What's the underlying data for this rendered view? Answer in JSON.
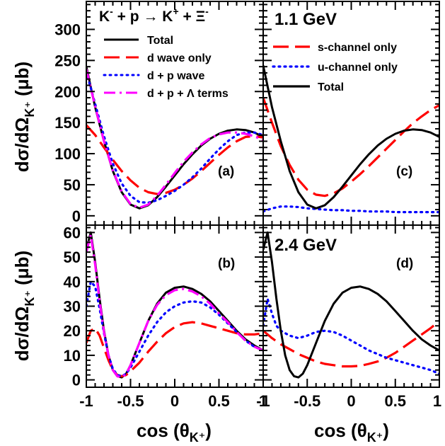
{
  "chart_data": [
    {
      "id": "a",
      "type": "line",
      "panel_label": "(a)",
      "title": "K⁻ + p → K⁺ + Ξ⁻",
      "ylabel": "dσ/dΩ_K⁺ (μb)",
      "xlim": [
        -1,
        1
      ],
      "ylim": [
        -15,
        345
      ],
      "yticks": [
        0,
        50,
        100,
        150,
        200,
        250,
        300
      ],
      "legend": "top-left",
      "series": [
        {
          "name": "Total",
          "color": "#000000",
          "dash": "solid",
          "x": [
            -1,
            -0.9,
            -0.8,
            -0.7,
            -0.6,
            -0.5,
            -0.4,
            -0.3,
            -0.2,
            -0.1,
            0,
            0.1,
            0.2,
            0.3,
            0.4,
            0.5,
            0.6,
            0.7,
            0.8,
            0.9,
            1.0
          ],
          "y": [
            240,
            175,
            120,
            72,
            38,
            18,
            12,
            17,
            30,
            47,
            65,
            83,
            99,
            113,
            124,
            132,
            137,
            139,
            138,
            134,
            127
          ]
        },
        {
          "name": "d wave only",
          "color": "#ff0000",
          "dash": "long",
          "x": [
            -1,
            -0.9,
            -0.8,
            -0.7,
            -0.6,
            -0.5,
            -0.4,
            -0.3,
            -0.2,
            -0.1,
            0,
            0.1,
            0.2,
            0.3,
            0.4,
            0.5,
            0.6,
            0.7,
            0.8,
            0.9,
            1.0
          ],
          "y": [
            146,
            130,
            110,
            90,
            72,
            57,
            45,
            38,
            35,
            37,
            42,
            50,
            60,
            72,
            85,
            98,
            110,
            120,
            127,
            128,
            126
          ]
        },
        {
          "name": "d + p wave",
          "color": "#0000ff",
          "dash": "dot",
          "x": [
            -1,
            -0.9,
            -0.8,
            -0.7,
            -0.6,
            -0.5,
            -0.4,
            -0.3,
            -0.2,
            -0.1,
            0,
            0.1,
            0.2,
            0.3,
            0.4,
            0.5,
            0.6,
            0.7,
            0.8,
            0.9,
            1.0
          ],
          "y": [
            232,
            180,
            128,
            84,
            52,
            32,
            22,
            21,
            25,
            32,
            40,
            50,
            62,
            76,
            92,
            107,
            120,
            130,
            134,
            134,
            130
          ]
        },
        {
          "name": "d + p + Λ terms",
          "color": "#ff00ff",
          "dash": "dashdot",
          "x": [
            -1,
            -0.9,
            -0.8,
            -0.7,
            -0.6,
            -0.5,
            -0.4,
            -0.3,
            -0.2,
            -0.1,
            0,
            0.1,
            0.2,
            0.3,
            0.4,
            0.5,
            0.6,
            0.7,
            0.8,
            0.9,
            1.0
          ],
          "y": [
            236,
            176,
            120,
            73,
            39,
            19,
            13,
            18,
            32,
            50,
            69,
            87,
            102,
            115,
            125,
            131,
            134,
            134,
            132,
            128,
            122
          ]
        }
      ]
    },
    {
      "id": "c",
      "type": "line",
      "panel_label": "(c)",
      "title": "1.1 GeV",
      "xlim": [
        -1,
        1
      ],
      "ylim": [
        -15,
        345
      ],
      "legend": "top-right",
      "series": [
        {
          "name": "s-channel only",
          "color": "#ff0000",
          "dash": "long",
          "x": [
            -1,
            -0.9,
            -0.8,
            -0.7,
            -0.6,
            -0.5,
            -0.4,
            -0.3,
            -0.2,
            -0.1,
            0,
            0.1,
            0.2,
            0.3,
            0.4,
            0.5,
            0.6,
            0.7,
            0.8,
            0.9,
            1.0
          ],
          "y": [
            190,
            150,
            112,
            82,
            58,
            42,
            34,
            32,
            36,
            44,
            55,
            67,
            80,
            94,
            108,
            122,
            136,
            149,
            160,
            170,
            178
          ]
        },
        {
          "name": "u-channel only",
          "color": "#0000ff",
          "dash": "dot",
          "x": [
            -1,
            -0.9,
            -0.8,
            -0.7,
            -0.6,
            -0.5,
            -0.4,
            -0.3,
            -0.2,
            -0.1,
            0,
            0.1,
            0.2,
            0.3,
            0.4,
            0.5,
            0.6,
            0.7,
            0.8,
            0.9,
            1.0
          ],
          "y": [
            7,
            12,
            15,
            15,
            14,
            12,
            11,
            10,
            9,
            9,
            8,
            8,
            7,
            7,
            7,
            6,
            6,
            6,
            6,
            6,
            6
          ]
        },
        {
          "name": "Total",
          "color": "#000000",
          "dash": "solid",
          "x": [
            -1,
            -0.9,
            -0.8,
            -0.7,
            -0.6,
            -0.5,
            -0.4,
            -0.3,
            -0.2,
            -0.1,
            0,
            0.1,
            0.2,
            0.3,
            0.4,
            0.5,
            0.6,
            0.7,
            0.8,
            0.9,
            1.0
          ],
          "y": [
            242,
            175,
            120,
            72,
            38,
            18,
            12,
            17,
            30,
            47,
            65,
            83,
            99,
            113,
            124,
            132,
            137,
            139,
            138,
            134,
            127
          ]
        }
      ]
    },
    {
      "id": "b",
      "type": "line",
      "panel_label": "(b)",
      "ylabel": "dσ/dΩ_K⁺ (μb)",
      "xlabel": "cos (θ_K⁺)",
      "xlim": [
        -1,
        1
      ],
      "xticks": [
        -1,
        -0.5,
        0,
        0.5,
        1
      ],
      "xticklabels": [
        "-1",
        "-0.5",
        "0",
        "0.5",
        "1"
      ],
      "ylim": [
        -3,
        63
      ],
      "yticks": [
        0,
        10,
        20,
        30,
        40,
        50,
        60
      ],
      "series": [
        {
          "name": "Total",
          "color": "#000000",
          "dash": "solid",
          "x": [
            -1,
            -0.95,
            -0.9,
            -0.85,
            -0.8,
            -0.75,
            -0.7,
            -0.65,
            -0.6,
            -0.55,
            -0.5,
            -0.4,
            -0.3,
            -0.2,
            -0.1,
            0,
            0.1,
            0.2,
            0.3,
            0.4,
            0.5,
            0.6,
            0.7,
            0.8,
            0.9,
            1.0
          ],
          "y": [
            53,
            60,
            48,
            33,
            20,
            10,
            4,
            1.5,
            1,
            2.5,
            6,
            15,
            24,
            31,
            35.5,
            37.5,
            38,
            37,
            35,
            32,
            28,
            24,
            20,
            16.5,
            14,
            12
          ]
        },
        {
          "name": "d wave only",
          "color": "#ff0000",
          "dash": "long",
          "x": [
            -1,
            -0.95,
            -0.9,
            -0.85,
            -0.8,
            -0.75,
            -0.7,
            -0.65,
            -0.6,
            -0.55,
            -0.5,
            -0.4,
            -0.3,
            -0.2,
            -0.1,
            0,
            0.1,
            0.2,
            0.3,
            0.4,
            0.5,
            0.6,
            0.7,
            0.8,
            0.9,
            1.0
          ],
          "y": [
            15,
            20,
            21,
            18,
            13,
            8,
            4,
            2,
            1.5,
            2,
            3.5,
            7,
            11.5,
            15.5,
            19,
            21.5,
            23,
            23.5,
            23,
            22,
            21,
            20,
            19,
            18.5,
            18.5,
            19
          ]
        },
        {
          "name": "d + p wave",
          "color": "#0000ff",
          "dash": "dot",
          "x": [
            -1,
            -0.95,
            -0.9,
            -0.85,
            -0.8,
            -0.75,
            -0.7,
            -0.65,
            -0.6,
            -0.55,
            -0.5,
            -0.4,
            -0.3,
            -0.2,
            -0.1,
            0,
            0.1,
            0.2,
            0.3,
            0.4,
            0.5,
            0.6,
            0.7,
            0.8,
            0.9,
            1.0
          ],
          "y": [
            30,
            40,
            38,
            29,
            19,
            10,
            4.5,
            2,
            1.5,
            2.5,
            5,
            11.5,
            18,
            23.5,
            27.5,
            30,
            31.5,
            32,
            31.5,
            29.5,
            26.5,
            23,
            19.5,
            16,
            13.5,
            12
          ]
        },
        {
          "name": "d + p + Λ terms",
          "color": "#ff00ff",
          "dash": "dashdot",
          "x": [
            -1,
            -0.95,
            -0.9,
            -0.85,
            -0.8,
            -0.75,
            -0.7,
            -0.65,
            -0.6,
            -0.55,
            -0.5,
            -0.4,
            -0.3,
            -0.2,
            -0.1,
            0,
            0.1,
            0.2,
            0.3,
            0.4,
            0.5,
            0.6,
            0.7,
            0.8,
            0.9,
            1.0
          ],
          "y": [
            52,
            59,
            47,
            32,
            19.5,
            10,
            4,
            1.5,
            1,
            2.5,
            6,
            15,
            24,
            30.5,
            34.5,
            36.5,
            37,
            36,
            34,
            31,
            27,
            23.5,
            19.5,
            16,
            13.5,
            12
          ]
        }
      ]
    },
    {
      "id": "d",
      "type": "line",
      "panel_label": "(d)",
      "title": "2.4 GeV",
      "xlabel": "cos (θ_K⁺)",
      "xlim": [
        -1,
        1
      ],
      "xticks": [
        -1,
        -0.5,
        0,
        0.5,
        1
      ],
      "xticklabels": [
        "-1",
        "-0.5",
        "0",
        "0.5",
        "1"
      ],
      "ylim": [
        -3,
        63
      ],
      "series": [
        {
          "name": "s-channel only",
          "color": "#ff0000",
          "dash": "long",
          "x": [
            -1,
            -0.9,
            -0.8,
            -0.7,
            -0.6,
            -0.5,
            -0.4,
            -0.3,
            -0.2,
            -0.1,
            0,
            0.1,
            0.2,
            0.3,
            0.4,
            0.5,
            0.6,
            0.7,
            0.8,
            0.9,
            1.0
          ],
          "y": [
            20,
            17,
            14.5,
            12.5,
            10.5,
            9,
            7.5,
            6.5,
            6,
            5.5,
            5.5,
            5.7,
            6.5,
            7.5,
            9,
            11,
            13.5,
            16,
            18.5,
            21,
            24
          ]
        },
        {
          "name": "u-channel only",
          "color": "#0000ff",
          "dash": "dot",
          "x": [
            -1,
            -0.95,
            -0.9,
            -0.85,
            -0.8,
            -0.7,
            -0.6,
            -0.5,
            -0.4,
            -0.3,
            -0.2,
            -0.1,
            0,
            0.1,
            0.2,
            0.3,
            0.4,
            0.5,
            0.6,
            0.7,
            0.8,
            0.9,
            1.0
          ],
          "y": [
            22,
            33,
            27,
            22,
            20,
            18,
            17,
            18,
            19.5,
            20,
            19.5,
            18,
            16,
            14,
            12,
            10.5,
            9,
            8,
            7,
            6,
            5,
            4,
            2.5
          ]
        },
        {
          "name": "Total",
          "color": "#000000",
          "dash": "solid",
          "x": [
            -1,
            -0.95,
            -0.9,
            -0.85,
            -0.8,
            -0.75,
            -0.7,
            -0.65,
            -0.6,
            -0.55,
            -0.5,
            -0.4,
            -0.3,
            -0.2,
            -0.1,
            0,
            0.1,
            0.2,
            0.3,
            0.4,
            0.5,
            0.6,
            0.7,
            0.8,
            0.9,
            1.0
          ],
          "y": [
            53,
            60,
            48,
            33,
            20,
            10,
            4,
            1.5,
            1,
            2.5,
            6,
            15,
            24,
            31,
            35.5,
            37.5,
            38,
            37,
            35,
            32,
            28,
            24,
            20,
            16.5,
            14,
            12
          ]
        }
      ]
    }
  ]
}
